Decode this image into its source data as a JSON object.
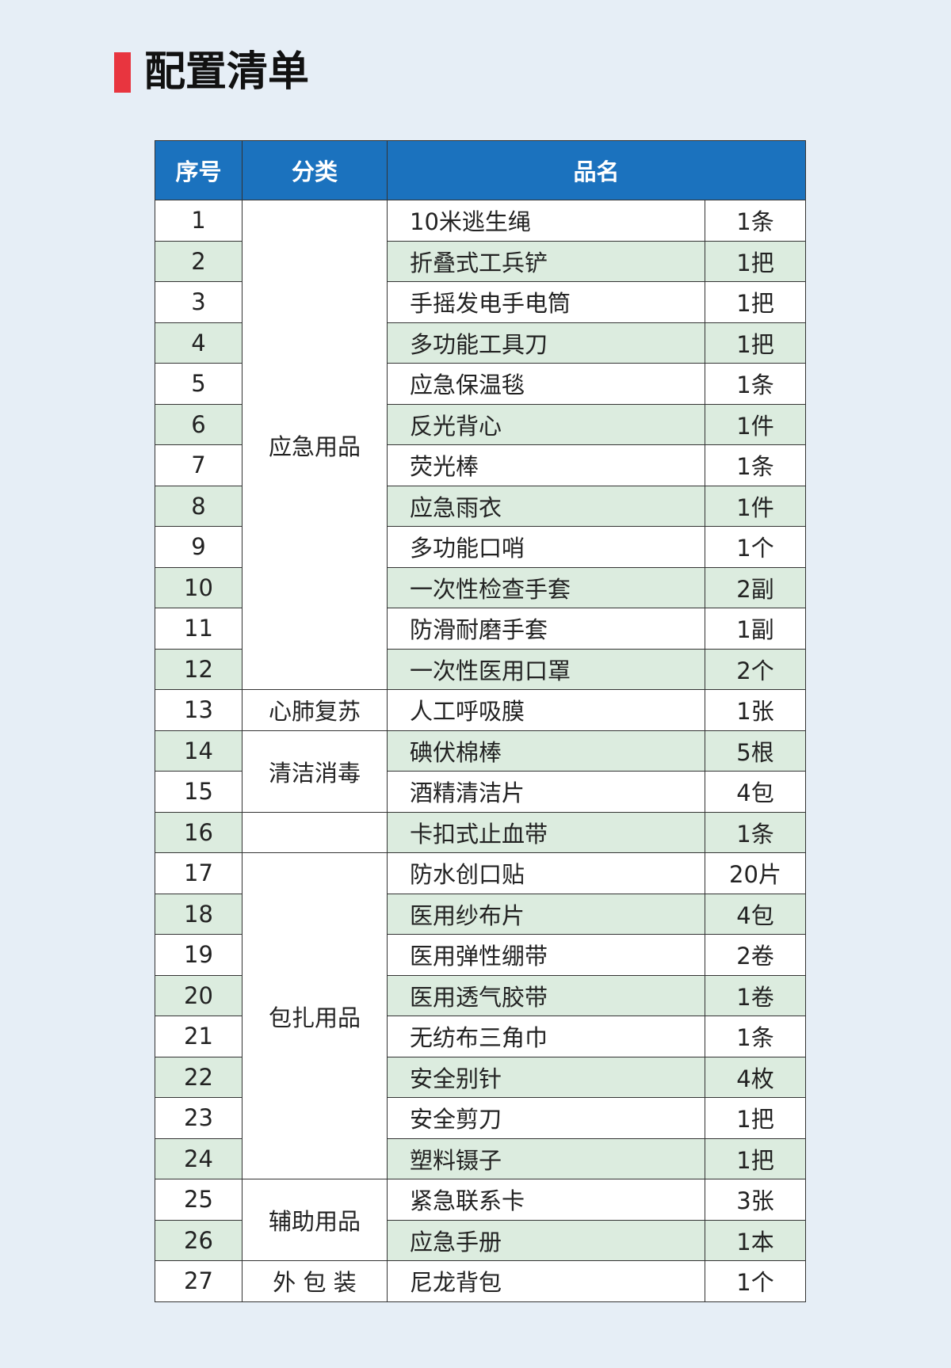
{
  "header": {
    "title": "配置清单"
  },
  "table": {
    "headers": [
      "序号",
      "分类",
      "品名"
    ],
    "groups": [
      {
        "label": "应急用品",
        "rows": [
          {
            "no": "1",
            "name": "10米逃生绳",
            "qty": "1条"
          },
          {
            "no": "2",
            "name": "折叠式工兵铲",
            "qty": "1把"
          },
          {
            "no": "3",
            "name": "手摇发电手电筒",
            "qty": "1把"
          },
          {
            "no": "4",
            "name": "多功能工具刀",
            "qty": "1把"
          },
          {
            "no": "5",
            "name": "应急保温毯",
            "qty": "1条"
          },
          {
            "no": "6",
            "name": "反光背心",
            "qty": "1件"
          },
          {
            "no": "7",
            "name": "荧光棒",
            "qty": "1条"
          },
          {
            "no": "8",
            "name": "应急雨衣",
            "qty": "1件"
          },
          {
            "no": "9",
            "name": "多功能口哨",
            "qty": "1个"
          },
          {
            "no": "10",
            "name": "一次性检查手套",
            "qty": "2副"
          },
          {
            "no": "11",
            "name": "防滑耐磨手套",
            "qty": "1副"
          },
          {
            "no": "12",
            "name": "一次性医用口罩",
            "qty": "2个"
          }
        ]
      },
      {
        "label": "心肺复苏",
        "rows": [
          {
            "no": "13",
            "name": "人工呼吸膜",
            "qty": "1张"
          }
        ]
      },
      {
        "label": "清洁消毒",
        "rows": [
          {
            "no": "14",
            "name": "碘伏棉棒",
            "qty": "5根"
          },
          {
            "no": "15",
            "name": "酒精清洁片",
            "qty": "4包"
          }
        ]
      },
      {
        "rows": [
          {
            "no": "16",
            "name": "卡扣式止血带",
            "qty": "1条"
          }
        ]
      },
      {
        "label": "包扎用品",
        "rows": [
          {
            "no": "17",
            "name": "防水创口贴",
            "qty": "20片"
          },
          {
            "no": "18",
            "name": "医用纱布片",
            "qty": "4包"
          },
          {
            "no": "19",
            "name": "医用弹性绷带",
            "qty": "2卷"
          },
          {
            "no": "20",
            "name": "医用透气胶带",
            "qty": "1卷"
          },
          {
            "no": "21",
            "name": "无纺布三角巾",
            "qty": "1条"
          },
          {
            "no": "22",
            "name": "安全别针",
            "qty": "4枚"
          },
          {
            "no": "23",
            "name": "安全剪刀",
            "qty": "1把"
          },
          {
            "no": "24",
            "name": "塑料镊子",
            "qty": "1把"
          }
        ]
      },
      {
        "label": "辅助用品",
        "rows": [
          {
            "no": "25",
            "name": "紧急联系卡",
            "qty": "3张"
          },
          {
            "no": "26",
            "name": "应急手册",
            "qty": "1本"
          }
        ]
      },
      {
        "label": "外 包 装",
        "rows": [
          {
            "no": "27",
            "name": "尼龙背包",
            "qty": "1个"
          }
        ]
      }
    ]
  }
}
